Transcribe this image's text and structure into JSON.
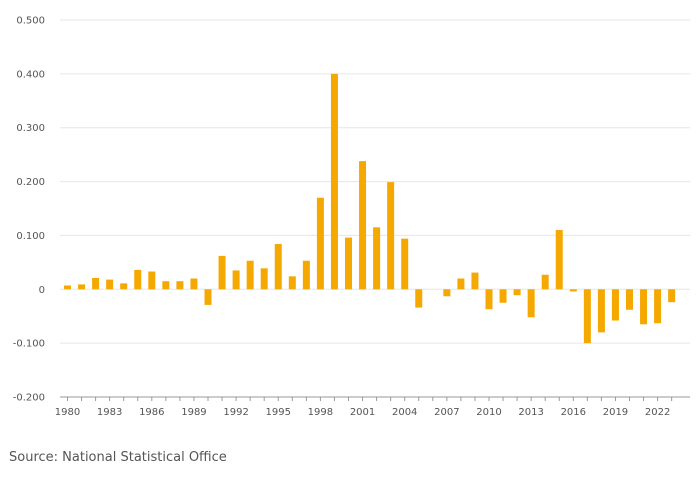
{
  "source": "Source: National Statistical Office",
  "colors": {
    "bar": "#f5a800",
    "grid": "#e6e6e6",
    "axis": "#999999",
    "text": "#555555"
  },
  "chart_data": {
    "type": "bar",
    "title": "",
    "xlabel": "",
    "ylabel": "",
    "ylim": [
      -0.2,
      0.5
    ],
    "y_ticks": [
      "0.500",
      "0.400",
      "0.300",
      "0.200",
      "0.100",
      "0",
      "-0.100",
      "-0.200"
    ],
    "y_tick_values": [
      0.5,
      0.4,
      0.3,
      0.2,
      0.1,
      0,
      -0.1,
      -0.2
    ],
    "x_tick_labels": [
      "1980",
      "1983",
      "1986",
      "1989",
      "1992",
      "1995",
      "1998",
      "2001",
      "2004",
      "2007",
      "2010",
      "2013",
      "2016",
      "2019",
      "2022"
    ],
    "categories": [
      "1980",
      "1981",
      "1982",
      "1983",
      "1984",
      "1985",
      "1986",
      "1987",
      "1988",
      "1989",
      "1990",
      "1991",
      "1992",
      "1993",
      "1994",
      "1995",
      "1996",
      "1997",
      "1998",
      "1999",
      "2000",
      "2001",
      "2002",
      "2003",
      "2004",
      "2005",
      "2006",
      "2007",
      "2008",
      "2009",
      "2010",
      "2011",
      "2012",
      "2013",
      "2014",
      "2015",
      "2016",
      "2017",
      "2018",
      "2019",
      "2020",
      "2021",
      "2022",
      "2023"
    ],
    "values": [
      0.007,
      0.009,
      0.021,
      0.018,
      0.011,
      0.036,
      0.033,
      0.015,
      0.015,
      0.02,
      -0.029,
      0.062,
      0.035,
      0.053,
      0.039,
      0.084,
      0.024,
      0.053,
      0.17,
      0.4,
      0.096,
      0.238,
      0.115,
      0.199,
      0.094,
      -0.034,
      0.0,
      -0.013,
      0.02,
      0.031,
      -0.037,
      -0.025,
      -0.011,
      -0.052,
      0.027,
      0.11,
      -0.004,
      -0.1,
      -0.08,
      -0.058,
      -0.038,
      -0.065,
      -0.063,
      -0.024
    ],
    "grid": true,
    "legend": "none"
  }
}
